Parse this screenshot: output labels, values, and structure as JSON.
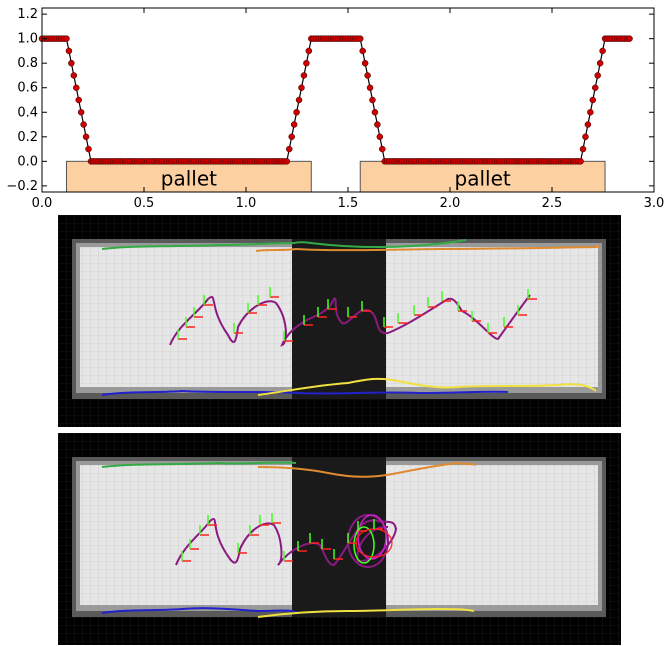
{
  "chart_data": {
    "type": "line",
    "x_range": [
      0.0,
      3.0
    ],
    "y_range": [
      -0.25,
      1.25
    ],
    "x_ticks": [
      "0.0",
      "0.5",
      "1.0",
      "1.5",
      "2.0",
      "2.5",
      "3.0"
    ],
    "y_ticks": [
      "−0.2",
      "0.0",
      "0.2",
      "0.4",
      "0.6",
      "0.8",
      "1.0",
      "1.2"
    ],
    "x_tick_values": [
      0.0,
      0.5,
      1.0,
      1.5,
      2.0,
      2.5,
      3.0
    ],
    "y_tick_values": [
      -0.2,
      0.0,
      0.2,
      0.4,
      0.6,
      0.8,
      1.0,
      1.2
    ],
    "series": [
      {
        "color": "#000000",
        "marker_color": "#cc0000",
        "x": [
          0.0,
          0.12,
          0.24,
          1.2,
          1.32,
          1.56,
          1.68,
          2.64,
          2.76,
          2.88
        ],
        "y": [
          1.0,
          1.0,
          0.0,
          0.0,
          1.0,
          1.0,
          0.0,
          0.0,
          1.0,
          1.0
        ]
      }
    ],
    "pallets": [
      {
        "label": "pallet",
        "x_start": 0.12,
        "x_end": 1.32,
        "y_bottom": -0.25,
        "y_top": 0.0,
        "fill": "#fdd0a2"
      },
      {
        "label": "pallet",
        "x_start": 1.56,
        "x_end": 2.76,
        "y_bottom": -0.25,
        "y_top": 0.0,
        "fill": "#fdd0a2"
      }
    ]
  },
  "trajectory_panels": [
    {
      "panel": "top",
      "colors": {
        "background": "#000000",
        "floor": "#e6e6e6",
        "gap": "#1a1a1a",
        "green": "#33aa44",
        "orange": "#e08a30",
        "blue": "#2222cc",
        "yellow": "#f0e040",
        "purple": "#8a1a80",
        "red": "#ff2222",
        "lime": "#44ff22"
      }
    },
    {
      "panel": "bottom",
      "colors": {
        "background": "#000000",
        "floor": "#e6e6e6",
        "gap": "#1a1a1a",
        "green": "#33aa44",
        "orange": "#e08a30",
        "blue": "#2222cc",
        "yellow": "#f0e040",
        "purple": "#8a1a80",
        "red": "#ff2222",
        "lime": "#44ff22"
      }
    }
  ]
}
